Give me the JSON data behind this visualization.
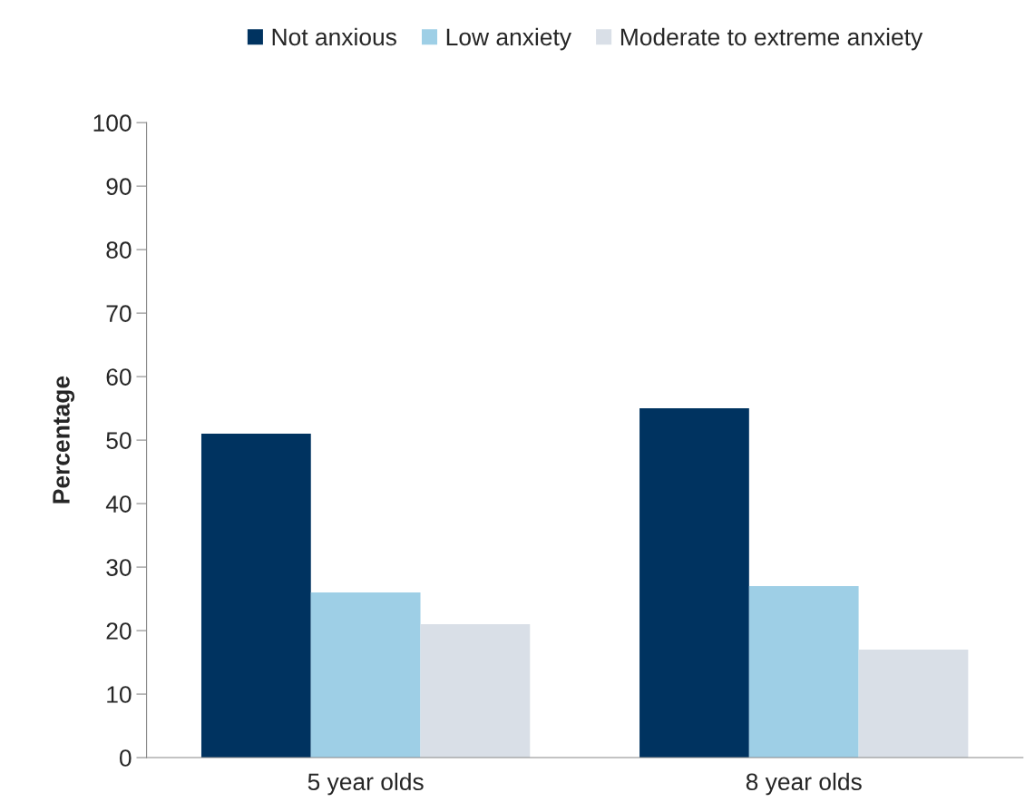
{
  "chart_data": {
    "type": "bar",
    "ylabel": "Percentage",
    "categories": [
      "5 year olds",
      "8 year olds"
    ],
    "series": [
      {
        "name": "Not anxious",
        "color": "#003360",
        "values": [
          51,
          55
        ]
      },
      {
        "name": "Low anxiety",
        "color": "#9ecfe6",
        "values": [
          26,
          27
        ]
      },
      {
        "name": "Moderate to extreme anxiety",
        "color": "#d9dfe7",
        "values": [
          21,
          17
        ]
      }
    ],
    "ylim": [
      0,
      100
    ],
    "yticks": [
      0,
      10,
      20,
      30,
      40,
      50,
      60,
      70,
      80,
      90,
      100
    ],
    "grid": false,
    "legend": "top"
  }
}
